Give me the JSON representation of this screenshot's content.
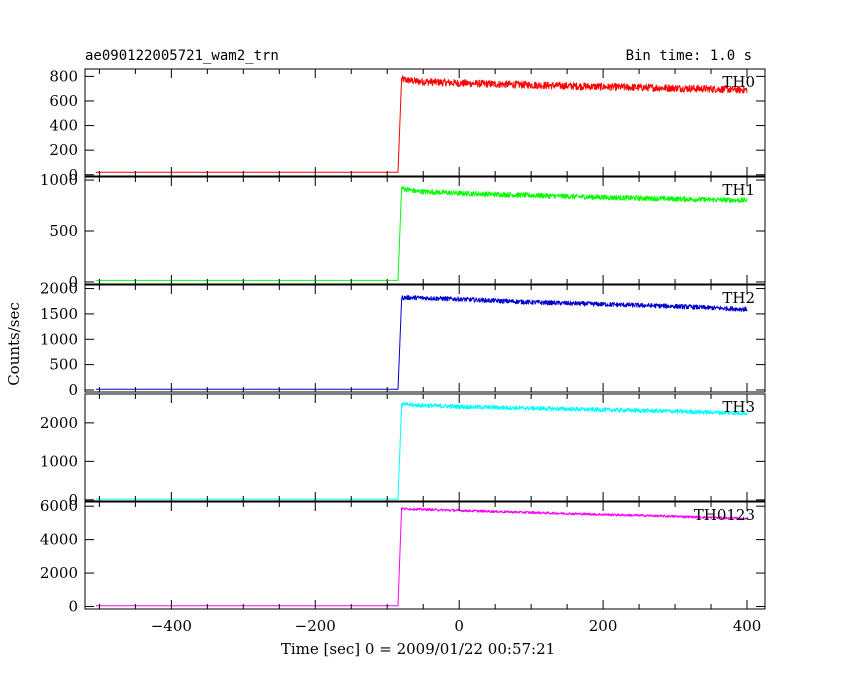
{
  "chart_data": {
    "type": "line",
    "title": "ae090122005721_wam2_trn",
    "bin_time_label": "Bin time: 1.0 s",
    "xlabel": "Time [sec] 0 = 2009/01/22 00:57:21",
    "ylabel": "Counts/sec",
    "xlim": [
      -520,
      425
    ],
    "xticks": [
      -400,
      -200,
      0,
      200,
      400
    ],
    "xtick_labels": [
      "−400",
      "−200",
      "0",
      "200",
      "400"
    ],
    "panels": [
      {
        "name": "TH0",
        "color": "#ff0000",
        "ylim": [
          -10,
          860
        ],
        "yticks": [
          0,
          200,
          400,
          600,
          800
        ],
        "ytick_labels": [
          "0",
          "200",
          "400",
          "600",
          "800"
        ],
        "points": [
          [
            -505,
            20
          ],
          [
            -85,
            20
          ],
          [
            -80,
            775
          ],
          [
            -60,
            760
          ],
          [
            0,
            745
          ],
          [
            100,
            730
          ],
          [
            200,
            715
          ],
          [
            300,
            705
          ],
          [
            400,
            690
          ]
        ],
        "noise": 30
      },
      {
        "name": "TH1",
        "color": "#00ff00",
        "ylim": [
          -20,
          1030
        ],
        "yticks": [
          0,
          500,
          1000
        ],
        "ytick_labels": [
          "0",
          "500",
          "1000"
        ],
        "points": [
          [
            -505,
            15
          ],
          [
            -85,
            15
          ],
          [
            -80,
            920
          ],
          [
            -60,
            890
          ],
          [
            0,
            870
          ],
          [
            100,
            850
          ],
          [
            200,
            830
          ],
          [
            300,
            815
          ],
          [
            400,
            800
          ]
        ],
        "noise": 25
      },
      {
        "name": "TH2",
        "color": "#0000cd",
        "ylim": [
          -40,
          2070
        ],
        "yticks": [
          0,
          500,
          1000,
          1500,
          2000
        ],
        "ytick_labels": [
          "0",
          "500",
          "1000",
          "1500",
          "2000"
        ],
        "points": [
          [
            -505,
            15
          ],
          [
            -85,
            15
          ],
          [
            -80,
            1820
          ],
          [
            -60,
            1820
          ],
          [
            0,
            1790
          ],
          [
            100,
            1730
          ],
          [
            200,
            1690
          ],
          [
            300,
            1650
          ],
          [
            400,
            1590
          ]
        ],
        "noise": 45
      },
      {
        "name": "TH3",
        "color": "#00ffff",
        "ylim": [
          -30,
          2750
        ],
        "yticks": [
          0,
          1000,
          2000
        ],
        "ytick_labels": [
          "0",
          "1000",
          "2000"
        ],
        "points": [
          [
            -505,
            20
          ],
          [
            -85,
            20
          ],
          [
            -80,
            2480
          ],
          [
            -60,
            2460
          ],
          [
            0,
            2420
          ],
          [
            100,
            2380
          ],
          [
            200,
            2340
          ],
          [
            300,
            2300
          ],
          [
            400,
            2250
          ]
        ],
        "noise": 55
      },
      {
        "name": "TH0123",
        "color": "#ff00ff",
        "ylim": [
          -150,
          6250
        ],
        "yticks": [
          0,
          2000,
          4000,
          6000
        ],
        "ytick_labels": [
          "0",
          "2000",
          "4000",
          "6000"
        ],
        "points": [
          [
            -505,
            50
          ],
          [
            -85,
            50
          ],
          [
            -80,
            5850
          ],
          [
            -60,
            5820
          ],
          [
            0,
            5740
          ],
          [
            100,
            5620
          ],
          [
            200,
            5500
          ],
          [
            300,
            5390
          ],
          [
            400,
            5250
          ]
        ],
        "noise": 70
      }
    ]
  }
}
